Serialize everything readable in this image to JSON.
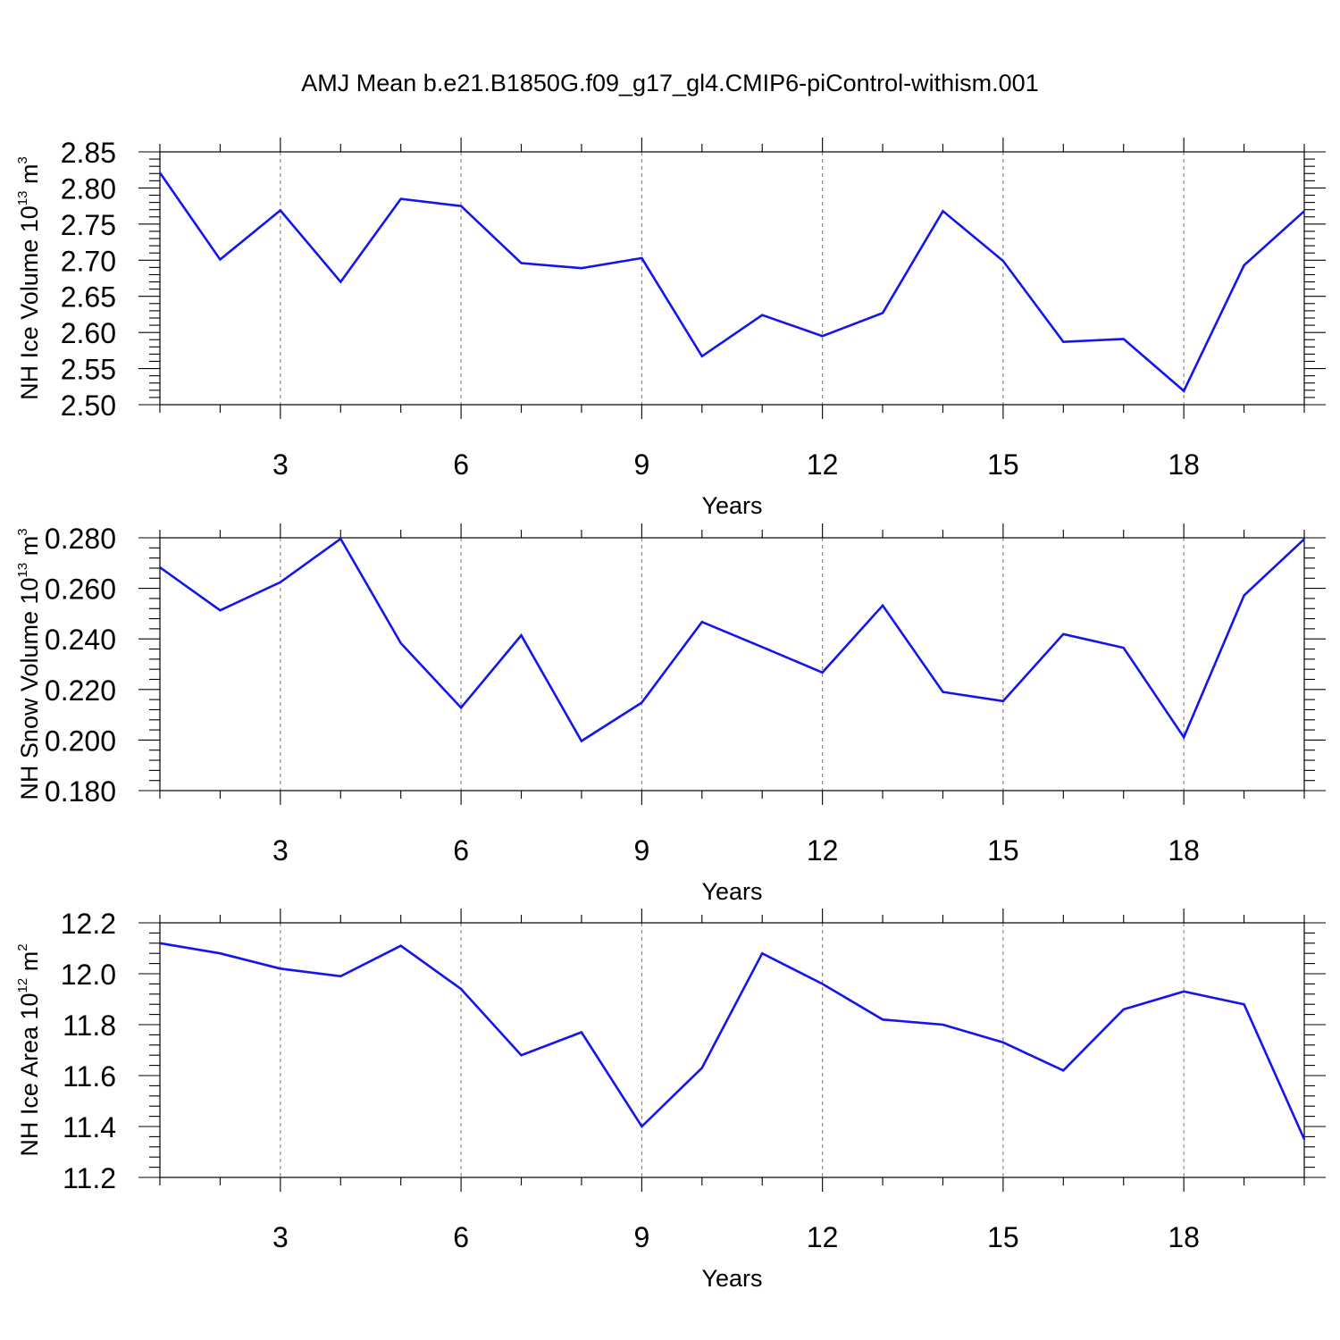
{
  "title": "AMJ Mean b.e21.B1850G.f09_g17_gl4.CMIP6-piControl-withism.001",
  "chart_data": [
    {
      "type": "line",
      "xlabel": "Years",
      "ylabel_main": "NH Ice Volume 10",
      "ylabel_sup1": "13",
      "ylabel_mid": " m",
      "ylabel_sup2": "3",
      "xlim": [
        1,
        20
      ],
      "ylim": [
        2.5,
        2.85
      ],
      "yticks": [
        "2.50",
        "2.55",
        "2.60",
        "2.65",
        "2.70",
        "2.75",
        "2.80",
        "2.85"
      ],
      "xticks": [
        "3",
        "6",
        "9",
        "12",
        "15",
        "18"
      ],
      "grid": "vertical dashed at major x ticks",
      "x": [
        1,
        2,
        3,
        4,
        5,
        6,
        7,
        8,
        9,
        10,
        11,
        12,
        13,
        14,
        15,
        16,
        17,
        18,
        19,
        20
      ],
      "series": [
        {
          "color": "#1414f0",
          "values": [
            2.821,
            2.701,
            2.769,
            2.67,
            2.785,
            2.775,
            2.696,
            2.689,
            2.703,
            2.567,
            2.624,
            2.595,
            2.627,
            2.768,
            2.699,
            2.587,
            2.591,
            2.519,
            2.693,
            2.768
          ]
        }
      ]
    },
    {
      "type": "line",
      "xlabel": "Years",
      "ylabel_main": "NH Snow Volume 10",
      "ylabel_sup1": "13",
      "ylabel_mid": " m",
      "ylabel_sup2": "3",
      "xlim": [
        1,
        20
      ],
      "ylim": [
        0.18,
        0.28
      ],
      "yticks": [
        "0.180",
        "0.200",
        "0.220",
        "0.240",
        "0.260",
        "0.280"
      ],
      "xticks": [
        "3",
        "6",
        "9",
        "12",
        "15",
        "18"
      ],
      "grid": "vertical dashed at major x ticks",
      "x": [
        1,
        2,
        3,
        4,
        5,
        6,
        7,
        8,
        9,
        10,
        11,
        12,
        13,
        14,
        15,
        16,
        17,
        18,
        19,
        20
      ],
      "series": [
        {
          "color": "#1414f0",
          "values": [
            0.2683,
            0.2513,
            0.2624,
            0.2796,
            0.2383,
            0.2128,
            0.2414,
            0.1996,
            0.2148,
            0.2467,
            0.2368,
            0.2267,
            0.2532,
            0.219,
            0.2154,
            0.2419,
            0.2365,
            0.2011,
            0.2572,
            0.2795
          ]
        }
      ]
    },
    {
      "type": "line",
      "xlabel": "Years",
      "ylabel_main": "NH Ice Area 10",
      "ylabel_sup1": "12",
      "ylabel_mid": " m",
      "ylabel_sup2": "2",
      "xlim": [
        1,
        20
      ],
      "ylim": [
        11.2,
        12.2
      ],
      "yticks": [
        "11.2",
        "11.4",
        "11.6",
        "11.8",
        "12.0",
        "12.2"
      ],
      "xticks": [
        "3",
        "6",
        "9",
        "12",
        "15",
        "18"
      ],
      "grid": "vertical dashed at major x ticks",
      "x": [
        1,
        2,
        3,
        4,
        5,
        6,
        7,
        8,
        9,
        10,
        11,
        12,
        13,
        14,
        15,
        16,
        17,
        18,
        19,
        20
      ],
      "series": [
        {
          "color": "#1414f0",
          "values": [
            12.12,
            12.08,
            12.02,
            11.99,
            12.11,
            11.94,
            11.68,
            11.77,
            11.4,
            11.63,
            12.08,
            11.96,
            11.82,
            11.8,
            11.73,
            11.62,
            11.86,
            11.93,
            11.88,
            11.35
          ]
        }
      ]
    }
  ]
}
